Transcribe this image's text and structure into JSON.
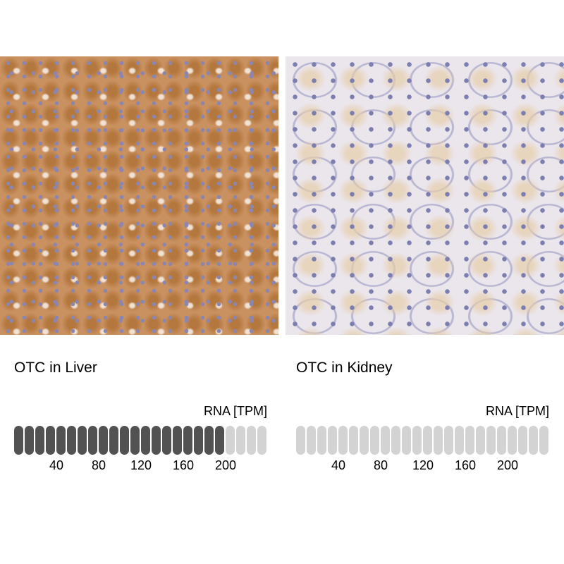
{
  "panels": [
    {
      "title": "OTC in Liver",
      "rna_label": "RNA [TPM]",
      "tpm_value": 200,
      "segments_total": 24,
      "segments_filled": 20,
      "ticks": [
        "40",
        "80",
        "120",
        "160",
        "200"
      ]
    },
    {
      "title": "OTC in Kidney",
      "rna_label": "RNA [TPM]",
      "tpm_value": 0,
      "segments_total": 24,
      "segments_filled": 0,
      "ticks": [
        "40",
        "80",
        "120",
        "160",
        "200"
      ]
    }
  ],
  "colors": {
    "filled": "#525252",
    "empty": "#d3d3d3"
  }
}
